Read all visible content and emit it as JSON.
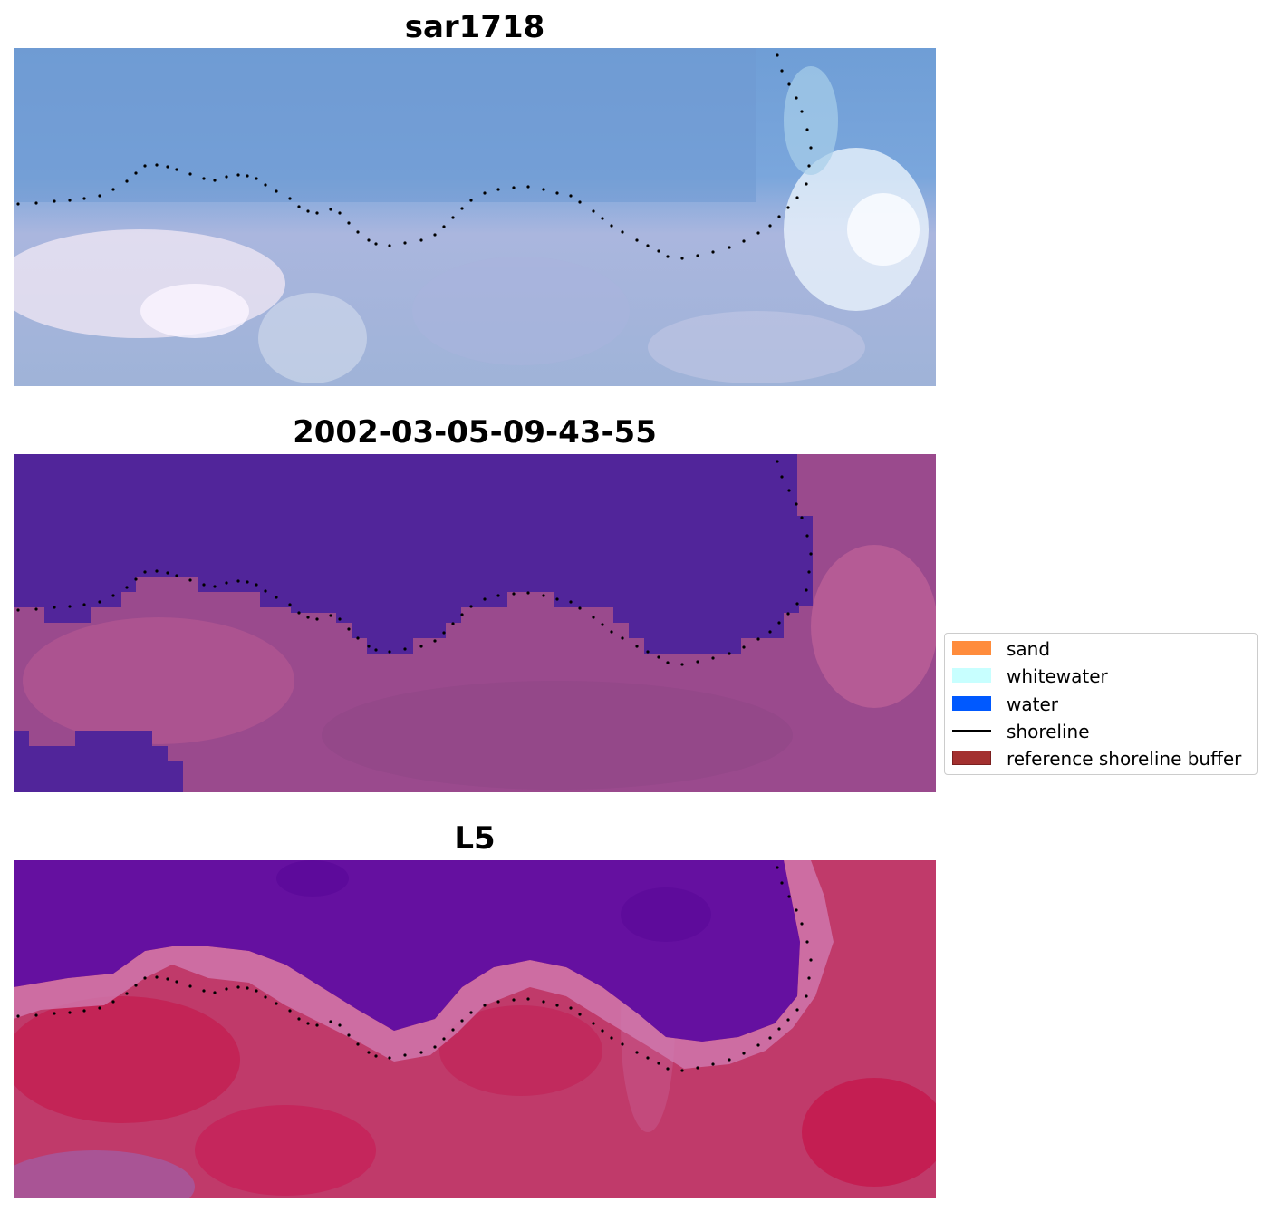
{
  "panels": [
    {
      "title": "sar1718",
      "style": "rgb"
    },
    {
      "title": "2002-03-05-09-43-55",
      "style": "classified"
    },
    {
      "title": "L5",
      "style": "index"
    }
  ],
  "legend": {
    "items": [
      {
        "label": "sand",
        "color": "#ff8c3c",
        "kind": "patch"
      },
      {
        "label": "whitewater",
        "color": "#c8ffff",
        "kind": "patch"
      },
      {
        "label": "water",
        "color": "#0059ff",
        "kind": "patch"
      },
      {
        "label": "shoreline",
        "color": "#000000",
        "kind": "line"
      },
      {
        "label": "reference shoreline buffer",
        "color": "#a3302f",
        "kind": "patch"
      }
    ]
  }
}
